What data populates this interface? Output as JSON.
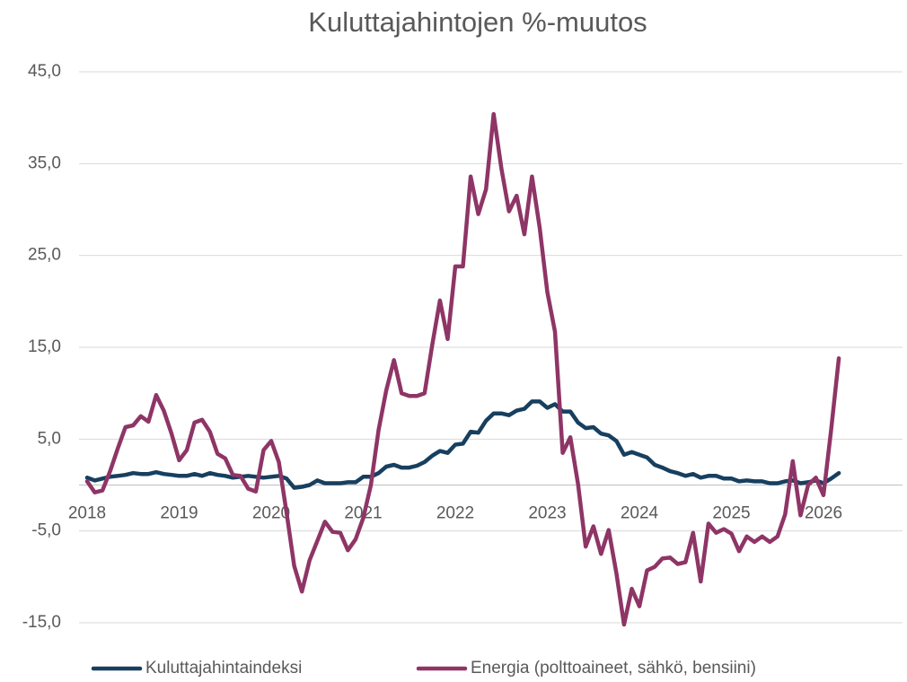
{
  "chart_data": {
    "type": "line",
    "title": "Kuluttajahintojen %-muutos",
    "categories": [
      "2018",
      null,
      null,
      null,
      null,
      null,
      null,
      null,
      null,
      null,
      null,
      null,
      "2019",
      null,
      null,
      null,
      null,
      null,
      null,
      null,
      null,
      null,
      null,
      null,
      "2020",
      null,
      null,
      null,
      null,
      null,
      null,
      null,
      null,
      null,
      null,
      null,
      "2021",
      null,
      null,
      null,
      null,
      null,
      null,
      null,
      null,
      null,
      null,
      null,
      "2022",
      null,
      null,
      null,
      null,
      null,
      null,
      null,
      null,
      null,
      null,
      null,
      "2023",
      null,
      null,
      null,
      null,
      null,
      null,
      null,
      null,
      null,
      null,
      null,
      "2024",
      null,
      null,
      null,
      null,
      null,
      null,
      null,
      null,
      null,
      null,
      null,
      "2025",
      null,
      null,
      null,
      null,
      null,
      null,
      null,
      null,
      null,
      null,
      null,
      "2026",
      null,
      null
    ],
    "series": [
      {
        "name": "Kuluttajahintaindeksi",
        "color": "#173f5f",
        "values": [
          0.8,
          0.5,
          0.7,
          0.9,
          1.0,
          1.1,
          1.3,
          1.2,
          1.2,
          1.4,
          1.2,
          1.1,
          1.0,
          1.0,
          1.2,
          1.0,
          1.3,
          1.1,
          1.0,
          0.8,
          0.9,
          1.0,
          0.9,
          0.8,
          0.9,
          1.0,
          0.7,
          -0.3,
          -0.2,
          0.0,
          0.5,
          0.2,
          0.2,
          0.2,
          0.3,
          0.3,
          0.9,
          0.9,
          1.3,
          2.0,
          2.2,
          1.9,
          1.9,
          2.1,
          2.5,
          3.2,
          3.7,
          3.5,
          4.4,
          4.5,
          5.8,
          5.7,
          7.0,
          7.8,
          7.8,
          7.6,
          8.1,
          8.3,
          9.1,
          9.1,
          8.4,
          8.8,
          8.0,
          8.0,
          6.8,
          6.2,
          6.3,
          5.6,
          5.4,
          4.8,
          3.3,
          3.6,
          3.3,
          3.0,
          2.2,
          1.9,
          1.5,
          1.3,
          1.0,
          1.2,
          0.8,
          1.0,
          1.0,
          0.7,
          0.7,
          0.4,
          0.5,
          0.4,
          0.4,
          0.2,
          0.2,
          0.4,
          0.5,
          0.2,
          0.3,
          0.5,
          0.2,
          0.7,
          1.3
        ]
      },
      {
        "name": "Energia (polttoaineet, sähkö, bensiini)",
        "color": "#8e3566",
        "values": [
          0.4,
          -0.8,
          -0.6,
          1.5,
          4.0,
          6.3,
          6.5,
          7.5,
          6.9,
          9.8,
          8.1,
          5.6,
          2.7,
          3.8,
          6.8,
          7.1,
          5.8,
          3.4,
          2.9,
          1.1,
          1.0,
          -0.4,
          -0.7,
          3.8,
          4.8,
          2.5,
          -3.0,
          -8.8,
          -11.6,
          -8.2,
          -6.1,
          -4.0,
          -5.1,
          -5.2,
          -7.1,
          -5.9,
          -3.6,
          0.0,
          6.0,
          10.3,
          13.6,
          10.0,
          9.7,
          9.7,
          10.0,
          15.3,
          20.1,
          15.9,
          23.8,
          23.8,
          33.6,
          29.5,
          32.2,
          40.4,
          34.5,
          29.8,
          31.5,
          27.3,
          33.6,
          28.0,
          21.0,
          16.7,
          3.5,
          5.2,
          0.1,
          -6.7,
          -4.5,
          -7.5,
          -4.9,
          -9.6,
          -15.2,
          -11.3,
          -13.2,
          -9.3,
          -8.9,
          -8.0,
          -7.9,
          -8.6,
          -8.4,
          -5.2,
          -10.5,
          -4.2,
          -5.2,
          -4.8,
          -5.3,
          -7.2,
          -5.6,
          -6.2,
          -5.6,
          -6.2,
          -5.6,
          -3.2,
          2.6,
          -3.3,
          0.0,
          0.8,
          -1.1,
          6.0,
          13.8
        ]
      }
    ],
    "ylim": [
      -15,
      45
    ],
    "yticks": [
      {
        "value": -15,
        "label": "-15,0"
      },
      {
        "value": -5,
        "label": "-5,0"
      },
      {
        "value": 5,
        "label": "5,0"
      },
      {
        "value": 15,
        "label": "15,0"
      },
      {
        "value": 25,
        "label": "25,0"
      },
      {
        "value": 35,
        "label": "35,0"
      },
      {
        "value": 45,
        "label": "45,0"
      }
    ],
    "grid": true,
    "legend": "bottom"
  }
}
